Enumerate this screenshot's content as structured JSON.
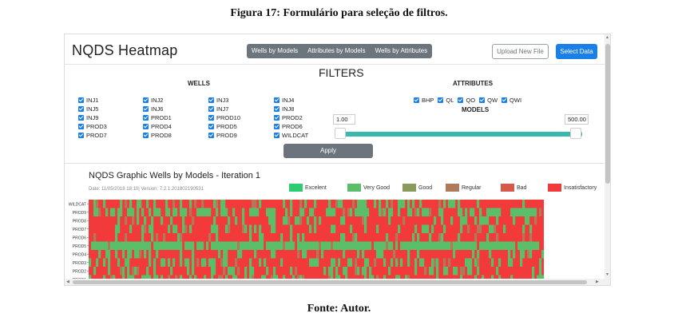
{
  "figure_caption": "Figura 17: Formulário para seleção de filtros.",
  "source_caption": "Fonte:  Autor.",
  "app_title": "NQDS Heatmap",
  "view_tabs": [
    "Wells by Models",
    "Attributes by Models",
    "Wells by Attributes"
  ],
  "upload_label": "Upload New File",
  "select_data_label": "Select Data",
  "filters_title": "FILTERS",
  "wells_title": "WELLS",
  "attributes_title": "ATTRIBUTES",
  "models_title": "MODELS",
  "wells": [
    [
      "INJ1",
      "INJ5",
      "INJ9",
      "PROD3",
      "PROD7"
    ],
    [
      "INJ2",
      "INJ6",
      "PROD1",
      "PROD4",
      "PROD8"
    ],
    [
      "INJ3",
      "INJ7",
      "PROD10",
      "PROD5",
      "PROD9"
    ],
    [
      "INJ4",
      "INJ8",
      "PROD2",
      "PROD6",
      "WILDCAT"
    ]
  ],
  "attributes": [
    "BHP",
    "QL",
    "QO",
    "QW",
    "QWI"
  ],
  "models_min": "1.00",
  "models_max": "500.00",
  "apply_label": "Apply",
  "graphic_title": "NQDS Graphic Wells by Models - Iteration 1",
  "graphic_subtitle": "Date: 11/05/2018 18:10| Version: 7.2.1.201802190531",
  "legend": [
    {
      "label": "Excelent",
      "color": "#2ecc71"
    },
    {
      "label": "Very Good",
      "color": "#5bbf6a"
    },
    {
      "label": "Good",
      "color": "#8a9a5b"
    },
    {
      "label": "Regular",
      "color": "#b07a5a"
    },
    {
      "label": "Bad",
      "color": "#d65a4a"
    },
    {
      "label": "Insatisfactory",
      "color": "#f23a3a"
    }
  ],
  "heatmap_rows": [
    "WILDCAT",
    "PROD9",
    "PROD8",
    "PROD7",
    "PROD6",
    "PROD5",
    "PROD4",
    "PROD3",
    "PROD2",
    "PROD1"
  ]
}
